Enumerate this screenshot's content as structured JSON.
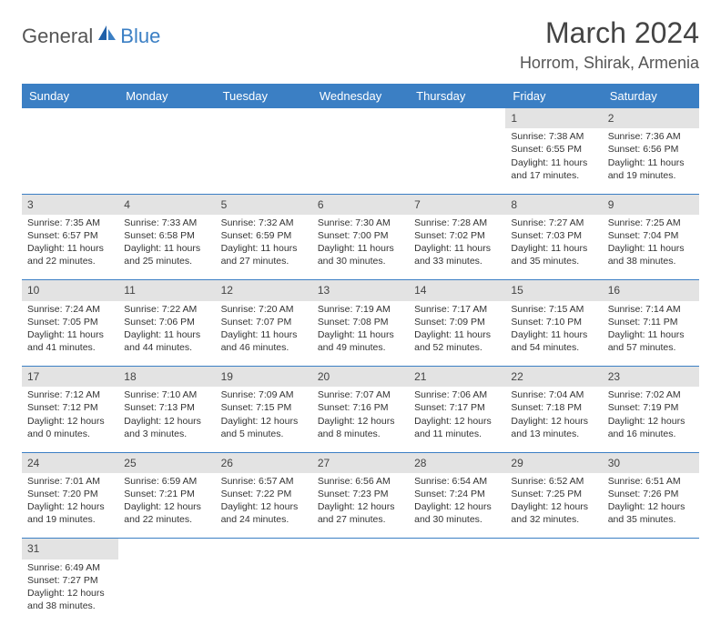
{
  "brand": {
    "general": "General",
    "blue": "Blue"
  },
  "title": "March 2024",
  "location": "Horrom, Shirak, Armenia",
  "colors": {
    "header_bg": "#3b7fc4",
    "header_text": "#ffffff",
    "daynum_bg": "#e3e3e3",
    "border": "#3b7fc4",
    "text": "#333333"
  },
  "weekdays": [
    "Sunday",
    "Monday",
    "Tuesday",
    "Wednesday",
    "Thursday",
    "Friday",
    "Saturday"
  ],
  "weeks": [
    [
      null,
      null,
      null,
      null,
      null,
      {
        "d": "1",
        "sr": "7:38 AM",
        "ss": "6:55 PM",
        "dl": "11 hours and 17 minutes."
      },
      {
        "d": "2",
        "sr": "7:36 AM",
        "ss": "6:56 PM",
        "dl": "11 hours and 19 minutes."
      }
    ],
    [
      {
        "d": "3",
        "sr": "7:35 AM",
        "ss": "6:57 PM",
        "dl": "11 hours and 22 minutes."
      },
      {
        "d": "4",
        "sr": "7:33 AM",
        "ss": "6:58 PM",
        "dl": "11 hours and 25 minutes."
      },
      {
        "d": "5",
        "sr": "7:32 AM",
        "ss": "6:59 PM",
        "dl": "11 hours and 27 minutes."
      },
      {
        "d": "6",
        "sr": "7:30 AM",
        "ss": "7:00 PM",
        "dl": "11 hours and 30 minutes."
      },
      {
        "d": "7",
        "sr": "7:28 AM",
        "ss": "7:02 PM",
        "dl": "11 hours and 33 minutes."
      },
      {
        "d": "8",
        "sr": "7:27 AM",
        "ss": "7:03 PM",
        "dl": "11 hours and 35 minutes."
      },
      {
        "d": "9",
        "sr": "7:25 AM",
        "ss": "7:04 PM",
        "dl": "11 hours and 38 minutes."
      }
    ],
    [
      {
        "d": "10",
        "sr": "7:24 AM",
        "ss": "7:05 PM",
        "dl": "11 hours and 41 minutes."
      },
      {
        "d": "11",
        "sr": "7:22 AM",
        "ss": "7:06 PM",
        "dl": "11 hours and 44 minutes."
      },
      {
        "d": "12",
        "sr": "7:20 AM",
        "ss": "7:07 PM",
        "dl": "11 hours and 46 minutes."
      },
      {
        "d": "13",
        "sr": "7:19 AM",
        "ss": "7:08 PM",
        "dl": "11 hours and 49 minutes."
      },
      {
        "d": "14",
        "sr": "7:17 AM",
        "ss": "7:09 PM",
        "dl": "11 hours and 52 minutes."
      },
      {
        "d": "15",
        "sr": "7:15 AM",
        "ss": "7:10 PM",
        "dl": "11 hours and 54 minutes."
      },
      {
        "d": "16",
        "sr": "7:14 AM",
        "ss": "7:11 PM",
        "dl": "11 hours and 57 minutes."
      }
    ],
    [
      {
        "d": "17",
        "sr": "7:12 AM",
        "ss": "7:12 PM",
        "dl": "12 hours and 0 minutes."
      },
      {
        "d": "18",
        "sr": "7:10 AM",
        "ss": "7:13 PM",
        "dl": "12 hours and 3 minutes."
      },
      {
        "d": "19",
        "sr": "7:09 AM",
        "ss": "7:15 PM",
        "dl": "12 hours and 5 minutes."
      },
      {
        "d": "20",
        "sr": "7:07 AM",
        "ss": "7:16 PM",
        "dl": "12 hours and 8 minutes."
      },
      {
        "d": "21",
        "sr": "7:06 AM",
        "ss": "7:17 PM",
        "dl": "12 hours and 11 minutes."
      },
      {
        "d": "22",
        "sr": "7:04 AM",
        "ss": "7:18 PM",
        "dl": "12 hours and 13 minutes."
      },
      {
        "d": "23",
        "sr": "7:02 AM",
        "ss": "7:19 PM",
        "dl": "12 hours and 16 minutes."
      }
    ],
    [
      {
        "d": "24",
        "sr": "7:01 AM",
        "ss": "7:20 PM",
        "dl": "12 hours and 19 minutes."
      },
      {
        "d": "25",
        "sr": "6:59 AM",
        "ss": "7:21 PM",
        "dl": "12 hours and 22 minutes."
      },
      {
        "d": "26",
        "sr": "6:57 AM",
        "ss": "7:22 PM",
        "dl": "12 hours and 24 minutes."
      },
      {
        "d": "27",
        "sr": "6:56 AM",
        "ss": "7:23 PM",
        "dl": "12 hours and 27 minutes."
      },
      {
        "d": "28",
        "sr": "6:54 AM",
        "ss": "7:24 PM",
        "dl": "12 hours and 30 minutes."
      },
      {
        "d": "29",
        "sr": "6:52 AM",
        "ss": "7:25 PM",
        "dl": "12 hours and 32 minutes."
      },
      {
        "d": "30",
        "sr": "6:51 AM",
        "ss": "7:26 PM",
        "dl": "12 hours and 35 minutes."
      }
    ],
    [
      {
        "d": "31",
        "sr": "6:49 AM",
        "ss": "7:27 PM",
        "dl": "12 hours and 38 minutes."
      },
      null,
      null,
      null,
      null,
      null,
      null
    ]
  ],
  "labels": {
    "sunrise": "Sunrise: ",
    "sunset": "Sunset: ",
    "daylight": "Daylight: "
  }
}
